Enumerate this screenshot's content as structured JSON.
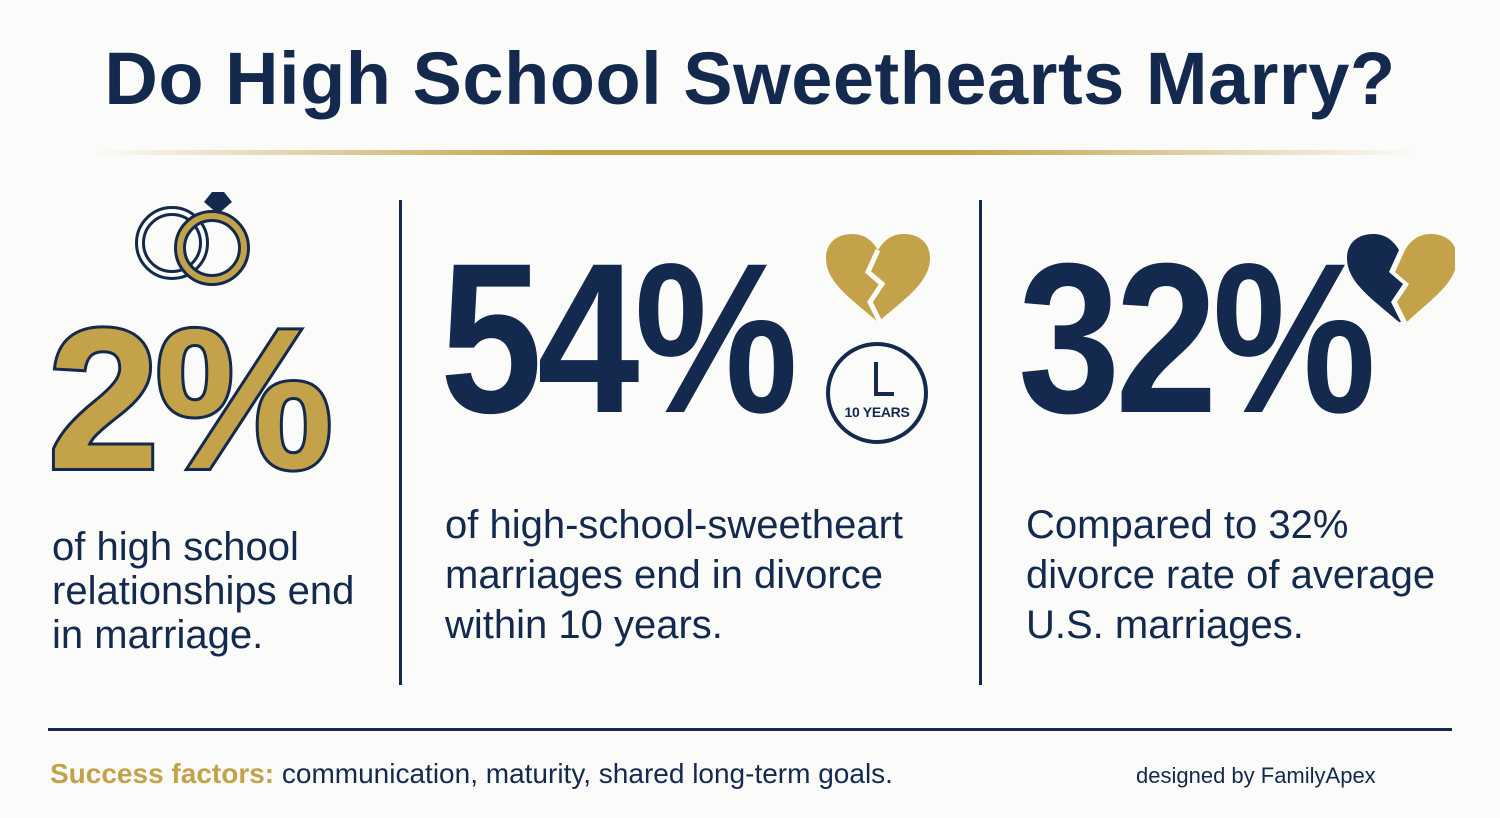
{
  "title": "Do High School Sweethearts Marry?",
  "colors": {
    "navy": "#13294d",
    "gold": "#c4a24a",
    "background": "#fbfbfa"
  },
  "columns": [
    {
      "stat": "2%",
      "icon": "wedding-rings-icon",
      "description": "of high school relationships end in marriage."
    },
    {
      "stat": "54%",
      "icons": [
        "broken-heart-icon",
        "clock-icon"
      ],
      "clock_label": "10 YEARS",
      "description": "of high-school-sweetheart marriages end in divorce within 10 years."
    },
    {
      "stat": "32%",
      "icon": "broken-heart-icon",
      "description": "Compared to 32% divorce rate of average U.S. marriages."
    }
  ],
  "footer": {
    "factors_label": "Success factors:",
    "factors_text": " communication, maturity, shared long-term goals.",
    "credit": "designed by FamilyApex"
  }
}
